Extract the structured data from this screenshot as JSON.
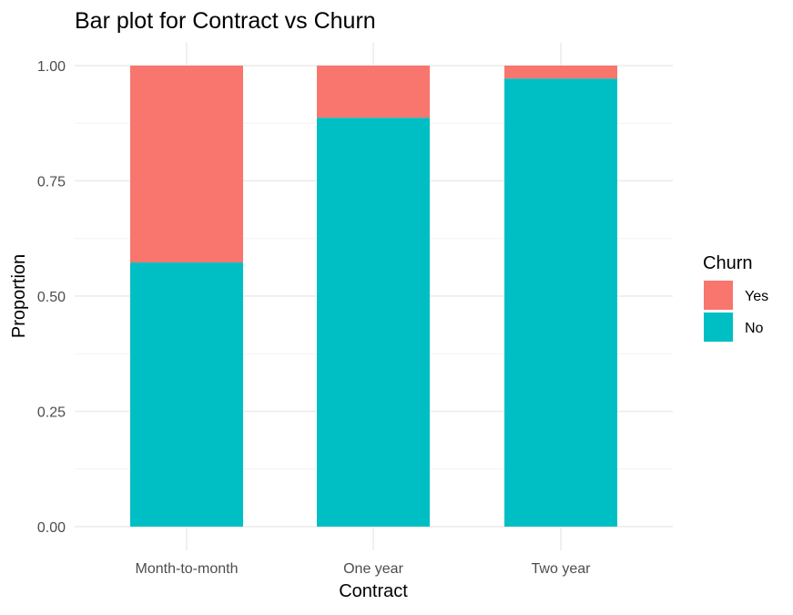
{
  "chart_data": {
    "type": "bar",
    "stacked": true,
    "title": "Bar plot for Contract vs Churn",
    "xlabel": "Contract",
    "ylabel": "Proportion",
    "categories": [
      "Month-to-month",
      "One year",
      "Two year"
    ],
    "ylim": [
      0,
      1
    ],
    "yticks": [
      "0.00",
      "0.25",
      "0.50",
      "0.75",
      "1.00"
    ],
    "grid": true,
    "legend": {
      "title": "Churn",
      "placement": "right"
    },
    "series": [
      {
        "name": "No",
        "color": "#00BFC4",
        "values": [
          0.573,
          0.887,
          0.972
        ]
      },
      {
        "name": "Yes",
        "color": "#F8766D",
        "values": [
          0.427,
          0.113,
          0.028
        ]
      }
    ]
  }
}
